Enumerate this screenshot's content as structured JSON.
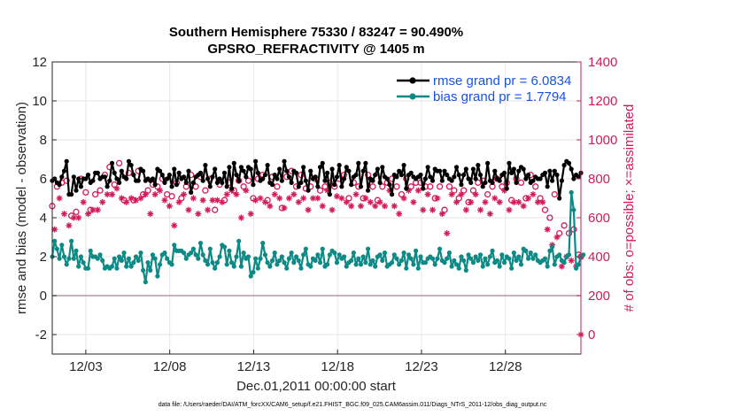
{
  "chart_data": {
    "type": "line",
    "title": "Southern Hemisphere 75330 / 83247 = 90.490%",
    "subtitle": "GPSRO_REFRACTIVITY @ 1405 m",
    "xlabel": "Dec.01,2011 00:00:00 start",
    "ylabel": "rmse and bias (model - observation)",
    "y2label": "# of obs: o=possible; ×=assimilated",
    "xlim": [
      1,
      32.5
    ],
    "ylim": [
      -3,
      12
    ],
    "y2lim": [
      -100,
      1400
    ],
    "x_ticks": [
      3,
      8,
      13,
      18,
      23,
      28
    ],
    "x_tick_labels": [
      "12/03",
      "12/08",
      "12/13",
      "12/18",
      "12/23",
      "12/28"
    ],
    "y_ticks": [
      -2,
      0,
      2,
      4,
      6,
      8,
      10,
      12
    ],
    "y2_ticks": [
      0,
      200,
      400,
      600,
      800,
      1000,
      1200,
      1400
    ],
    "grid": true,
    "legend_position": "top-right",
    "series": [
      {
        "name": "rmse grand pr = 6.0834",
        "color": "#000000",
        "marker": "dot",
        "values": [
          5.9,
          6.0,
          5.8,
          5.7,
          6.1,
          6.4,
          6.9,
          5.2,
          5.2,
          6.1,
          5.4,
          6.0,
          5.6,
          6.0,
          6.0,
          6.2,
          5.8,
          5.9,
          6.3,
          6.3,
          6.0,
          6.1,
          6.1,
          5.6,
          5.9,
          6.8,
          6.3,
          6.0,
          5.8,
          6.4,
          6.1,
          6.0,
          6.9,
          6.7,
          6.2,
          5.9,
          5.9,
          6.5,
          6.4,
          5.9,
          6.0,
          5.9,
          6.0,
          5.7,
          6.5,
          6.4,
          6.2,
          5.8,
          6.0,
          6.2,
          5.6,
          6.5,
          5.7,
          6.3,
          6.0,
          6.1,
          5.8,
          6.4,
          5.3,
          5.8,
          6.1,
          6.2,
          6.3,
          5.9,
          6.7,
          6.0,
          5.6,
          6.1,
          6.5,
          5.8,
          6.0,
          5.8,
          6.3,
          5.6,
          6.6,
          5.5,
          6.8,
          6.2,
          5.9,
          6.6,
          6.4,
          6.1,
          6.6,
          6.5,
          5.7,
          6.9,
          6.3,
          5.9,
          6.0,
          6.2,
          6.7,
          5.8,
          5.7,
          6.2,
          6.0,
          6.5,
          5.9,
          6.9,
          6.4,
          6.1,
          5.8,
          6.4,
          6.3,
          5.6,
          5.8,
          6.6,
          5.9,
          5.4,
          6.4,
          6.0,
          6.1,
          5.6,
          6.6,
          6.8,
          5.9,
          6.3,
          5.2,
          6.5,
          5.7,
          6.1,
          6.7,
          5.6,
          6.0,
          6.6,
          6.4,
          5.7,
          6.1,
          6.2,
          6.8,
          5.6,
          6.4,
          6.8,
          5.4,
          6.0,
          5.9,
          6.2,
          6.5,
          5.8,
          6.6,
          6.1,
          6.0,
          5.7,
          5.2,
          6.2,
          6.1,
          6.4,
          6.2,
          6.7,
          5.5,
          6.2,
          6.3,
          6.1,
          6.0,
          6.1,
          6.2,
          5.5,
          6.0,
          6.6,
          6.1,
          5.9,
          6.5,
          6.4,
          6.4,
          5.9,
          6.4,
          6.2,
          6.0,
          5.9,
          6.1,
          6.6,
          6.2,
          5.7,
          6.2,
          6.5,
          6.0,
          5.8,
          6.5,
          6.0,
          6.7,
          6.2,
          5.6,
          5.8,
          6.8,
          5.9,
          5.8,
          6.4,
          6.0,
          5.9,
          6.2,
          6.3,
          5.5,
          6.8,
          6.3,
          6.5,
          5.8,
          6.4,
          6.6,
          6.5,
          6.0,
          6.2,
          5.8,
          5.9,
          6.1,
          6.0,
          6.0,
          6.2,
          6.3,
          5.6,
          6.4,
          5.9,
          6.4,
          6.2,
          5.0,
          5.9,
          6.7,
          6.9,
          6.8,
          6.5,
          6.0,
          6.2,
          6.1,
          6.3
        ]
      },
      {
        "name": "bias grand pr = 1.7794",
        "color": "#0e8a86",
        "marker": "dot",
        "values": [
          2.0,
          2.8,
          2.4,
          1.9,
          2.6,
          2.0,
          1.6,
          1.9,
          2.8,
          1.9,
          2.3,
          1.5,
          2.0,
          1.7,
          1.4,
          1.4,
          2.3,
          2.0,
          2.0,
          1.9,
          2.1,
          1.8,
          1.4,
          1.5,
          1.4,
          1.5,
          1.9,
          1.4,
          2.0,
          1.8,
          2.2,
          1.5,
          1.9,
          1.5,
          1.7,
          2.0,
          1.8,
          2.2,
          1.3,
          0.7,
          1.7,
          1.3,
          2.1,
          1.9,
          1.0,
          1.6,
          2.1,
          2.2,
          1.9,
          1.7,
          1.6,
          2.6,
          2.3,
          2.3,
          2.3,
          2.2,
          1.9,
          2.1,
          2.2,
          2.4,
          2.1,
          1.9,
          2.7,
          2.1,
          1.8,
          1.6,
          2.4,
          1.7,
          1.4,
          1.7,
          2.0,
          2.6,
          2.5,
          1.6,
          2.3,
          1.7,
          1.5,
          2.0,
          2.8,
          1.5,
          2.2,
          1.9,
          2.0,
          1.0,
          1.2,
          1.9,
          1.4,
          1.9,
          2.7,
          2.1,
          1.7,
          1.5,
          1.8,
          2.2,
          1.6,
          1.8,
          2.0,
          1.7,
          1.4,
          1.9,
          2.2,
          1.7,
          2.0,
          1.8,
          1.4,
          2.1,
          2.4,
          1.6,
          1.5,
          1.9,
          1.8,
          2.1,
          1.7,
          2.4,
          1.5,
          1.6,
          2.1,
          2.3,
          2.2,
          1.7,
          2.1,
          1.9,
          2.0,
          1.5,
          1.7,
          1.8,
          2.2,
          1.6,
          1.9,
          1.6,
          2.0,
          1.7,
          2.4,
          1.6,
          1.8,
          1.5,
          2.0,
          2.1,
          1.8,
          2.2,
          1.5,
          1.6,
          1.7,
          2.1,
          1.9,
          1.6,
          1.8,
          2.2,
          1.4,
          2.1,
          1.9,
          1.6,
          2.3,
          1.4,
          2.0,
          1.7,
          1.7,
          1.9,
          2.0,
          1.9,
          1.6,
          1.9,
          2.4,
          1.8,
          1.7,
          1.9,
          2.2,
          1.5,
          1.8,
          1.6,
          1.4,
          2.0,
          1.8,
          1.3,
          2.1,
          1.9,
          1.7,
          2.0,
          1.8,
          2.1,
          1.5,
          1.9,
          1.6,
          2.0,
          2.3,
          1.7,
          1.8,
          1.5,
          2.1,
          1.7,
          2.0,
          1.9,
          1.4,
          2.2,
          1.8,
          2.0,
          1.6,
          2.4,
          2.3,
          1.9,
          2.2,
          1.9,
          2.1,
          1.8,
          1.7,
          1.8,
          1.9,
          1.5,
          2.3,
          2.5,
          1.6,
          2.0,
          2.1,
          1.8,
          1.7,
          2.0,
          2.1,
          5.3,
          4.4,
          1.4,
          1.6,
          2.0,
          2.1
        ]
      }
    ],
    "obs_possible": {
      "marker": "o",
      "color": "#d21a5a",
      "axis": "right",
      "values": [
        660,
        680,
        760,
        840,
        780,
        720,
        790,
        640,
        610,
        690,
        630,
        660,
        800,
        760,
        730,
        700,
        640,
        720,
        720,
        710,
        740,
        760,
        820,
        790,
        860,
        800,
        770,
        830,
        880,
        780,
        690,
        760,
        830,
        780,
        690,
        780,
        840,
        780,
        720,
        800,
        740,
        700,
        770,
        810,
        760,
        820,
        800,
        780,
        720,
        730,
        710,
        640,
        780,
        760,
        700,
        800,
        760,
        710,
        820,
        790,
        760,
        690,
        810,
        780,
        740,
        720,
        800,
        780,
        640,
        780,
        770,
        760,
        690,
        810,
        780,
        820,
        740,
        800,
        790,
        680,
        760,
        830,
        790,
        700,
        700,
        760,
        800,
        780,
        820,
        760,
        690,
        740,
        810,
        800,
        760,
        780,
        650,
        720,
        810,
        780,
        840,
        800,
        760,
        760,
        820,
        780,
        750,
        720,
        760,
        780,
        800,
        780,
        740,
        740,
        760,
        820,
        780,
        720,
        760,
        790,
        800,
        780,
        820,
        760,
        700,
        740,
        780,
        800,
        760,
        740,
        700,
        780,
        820,
        760,
        760,
        740,
        690,
        760,
        760,
        740,
        780,
        820,
        800,
        740,
        760,
        700,
        720,
        780,
        800,
        820,
        760,
        760,
        780,
        820,
        780,
        720,
        760,
        800,
        760,
        720,
        700,
        780,
        760,
        700,
        640,
        600,
        760,
        800,
        740,
        760,
        700,
        800,
        740,
        720,
        680,
        760,
        740,
        800,
        780,
        720,
        790,
        760,
        720,
        700,
        760,
        780,
        800,
        760,
        760,
        820,
        780,
        720,
        690,
        760,
        800,
        760,
        780,
        740,
        700,
        780,
        820,
        800,
        760,
        760,
        700,
        760,
        640,
        620,
        600,
        540,
        720,
        580,
        520,
        430,
        560,
        480,
        520,
        460,
        540,
        420,
        410,
        400
      ]
    },
    "obs_assimilated": {
      "marker": "*",
      "color": "#d21a5a",
      "axis": "right",
      "values": [
        600,
        540,
        600,
        700,
        640,
        620,
        680,
        560,
        520,
        600,
        560,
        600,
        720,
        680,
        660,
        620,
        560,
        640,
        650,
        640,
        660,
        680,
        740,
        720,
        760,
        720,
        690,
        750,
        800,
        700,
        620,
        680,
        750,
        700,
        620,
        690,
        760,
        700,
        640,
        720,
        660,
        620,
        690,
        720,
        680,
        740,
        720,
        690,
        640,
        660,
        630,
        560,
        690,
        680,
        620,
        720,
        680,
        640,
        740,
        700,
        680,
        620,
        720,
        690,
        660,
        640,
        720,
        690,
        560,
        690,
        690,
        680,
        600,
        720,
        700,
        740,
        660,
        720,
        700,
        600,
        680,
        740,
        710,
        620,
        620,
        690,
        720,
        700,
        740,
        680,
        610,
        660,
        720,
        720,
        680,
        700,
        570,
        650,
        720,
        700,
        760,
        720,
        680,
        680,
        740,
        700,
        670,
        640,
        680,
        700,
        720,
        700,
        660,
        660,
        680,
        740,
        700,
        640,
        680,
        710,
        720,
        700,
        740,
        680,
        620,
        660,
        700,
        720,
        680,
        660,
        620,
        700,
        740,
        680,
        680,
        660,
        610,
        680,
        680,
        660,
        700,
        740,
        720,
        660,
        680,
        620,
        640,
        700,
        720,
        740,
        680,
        680,
        700,
        740,
        700,
        640,
        680,
        720,
        680,
        640,
        620,
        700,
        680,
        620,
        560,
        520,
        680,
        720,
        660,
        680,
        620,
        720,
        660,
        640,
        600,
        680,
        660,
        720,
        700,
        640,
        710,
        680,
        640,
        620,
        680,
        700,
        720,
        680,
        680,
        740,
        700,
        640,
        610,
        680,
        720,
        680,
        700,
        660,
        620,
        700,
        740,
        720,
        680,
        680,
        620,
        680,
        560,
        540,
        520,
        460,
        640,
        500,
        440,
        350,
        480,
        400,
        440,
        380,
        460,
        350,
        330,
        0
      ]
    }
  },
  "footer": "data file: /Users/raeder/DAI/ATM_forcXX/CAM6_setup/f.e21.FHIST_BGC.f09_025.CAM6assim.011/Diags_NTrS_2011-12/obs_diag_output.nc"
}
